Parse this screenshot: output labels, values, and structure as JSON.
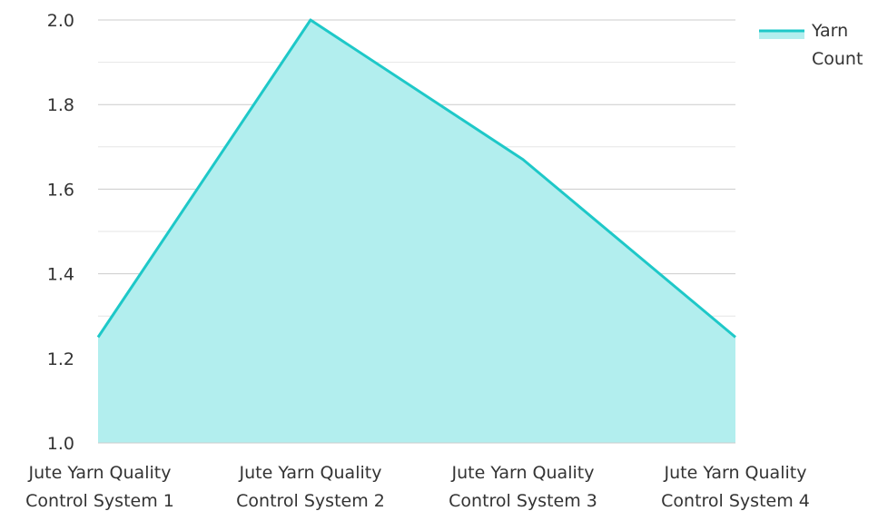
{
  "chart_data": {
    "type": "area",
    "title": "",
    "xlabel": "",
    "ylabel": "",
    "categories": [
      [
        "Jute Yarn Quality",
        "Control System 1"
      ],
      [
        "Jute Yarn Quality",
        "Control System 2"
      ],
      [
        "Jute Yarn Quality",
        "Control System 3"
      ],
      [
        "Jute Yarn Quality",
        "Control System 4"
      ]
    ],
    "series": [
      {
        "name": "Yarn Count",
        "legend_lines": [
          "Yarn",
          "Count"
        ],
        "values": [
          1.25,
          2.0,
          1.67,
          1.25
        ],
        "line_color": "#1ec8c8",
        "fill_color": "#b2eeee"
      }
    ],
    "ylim": [
      1.0,
      2.0
    ],
    "y_ticks": [
      "1.0",
      "1.2",
      "1.4",
      "1.6",
      "1.8",
      "2.0"
    ],
    "y_tick_values": [
      1.0,
      1.2,
      1.4,
      1.6,
      1.8,
      2.0
    ],
    "minor_grid_values": [
      1.1,
      1.3,
      1.5,
      1.7,
      1.9
    ],
    "grid": true,
    "legend_position": "top-right"
  }
}
